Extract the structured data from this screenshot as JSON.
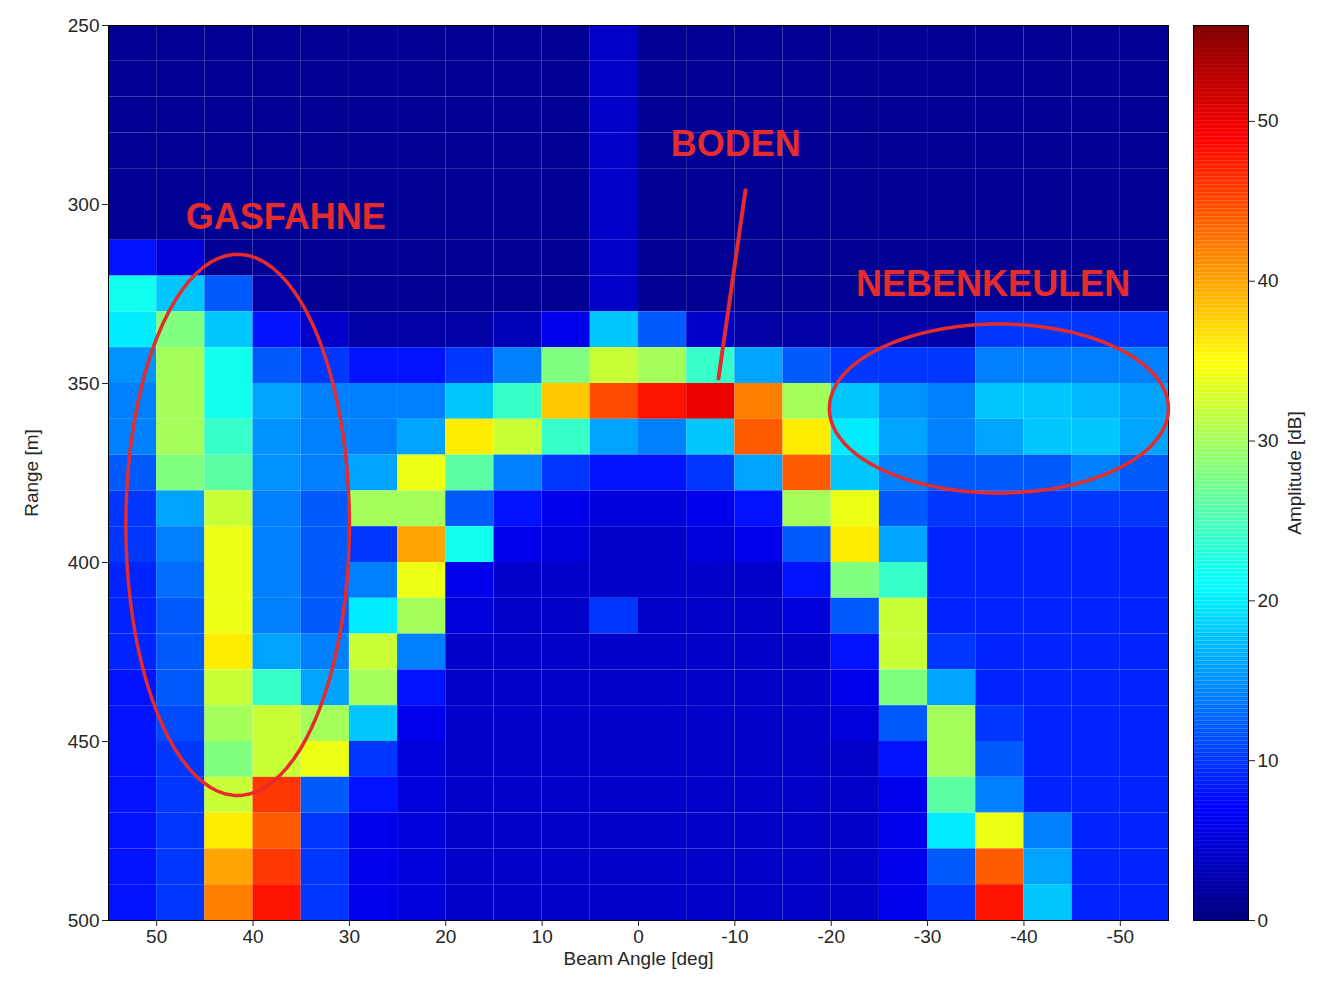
{
  "chart_data": {
    "type": "heatmap",
    "x_label": "Beam Angle [deg]",
    "y_label": "Range [m]",
    "xlim": [
      55,
      -55
    ],
    "ylim": [
      500,
      250
    ],
    "xticks": [
      50,
      40,
      30,
      20,
      10,
      0,
      -10,
      -20,
      -30,
      -40,
      -50
    ],
    "yticks": [
      250,
      300,
      350,
      400,
      450,
      500
    ],
    "x_bins": [
      55,
      50,
      45,
      40,
      35,
      30,
      25,
      20,
      15,
      10,
      5,
      0,
      -5,
      -10,
      -15,
      -20,
      -25,
      -30,
      -35,
      -40,
      -45,
      -50,
      -55
    ],
    "y_bins": [
      250,
      260,
      270,
      280,
      290,
      300,
      310,
      320,
      330,
      340,
      350,
      360,
      370,
      380,
      390,
      400,
      410,
      420,
      430,
      440,
      450,
      460,
      470,
      480,
      490,
      500
    ],
    "cells": [
      [
        1,
        1,
        1,
        1,
        1,
        1,
        1,
        1,
        1,
        1,
        4,
        1,
        1,
        1,
        1,
        1,
        1,
        1,
        1,
        1,
        1,
        1
      ],
      [
        1,
        1,
        1,
        1,
        1,
        1,
        1,
        1,
        1,
        1,
        4,
        1,
        1,
        1,
        1,
        1,
        1,
        1,
        1,
        1,
        1,
        1
      ],
      [
        1,
        1,
        1,
        1,
        1,
        1,
        1,
        1,
        1,
        1,
        4,
        1,
        1,
        1,
        1,
        1,
        1,
        1,
        1,
        1,
        1,
        1
      ],
      [
        1,
        1,
        1,
        1,
        1,
        1,
        1,
        1,
        1,
        1,
        4,
        1,
        1,
        1,
        1,
        1,
        1,
        1,
        1,
        1,
        1,
        1
      ],
      [
        1,
        1,
        1,
        1,
        1,
        1,
        1,
        1,
        1,
        1,
        4,
        1,
        1,
        1,
        1,
        1,
        1,
        1,
        1,
        1,
        1,
        1
      ],
      [
        1,
        1,
        1,
        1,
        1,
        1,
        1,
        1,
        1,
        1,
        4,
        1,
        1,
        1,
        1,
        1,
        1,
        1,
        1,
        1,
        1,
        1
      ],
      [
        8,
        5,
        1,
        1,
        1,
        1,
        1,
        1,
        1,
        1,
        4,
        1,
        1,
        1,
        1,
        1,
        1,
        1,
        1,
        1,
        1,
        1
      ],
      [
        22,
        18,
        12,
        2,
        1,
        1,
        1,
        1,
        1,
        1,
        4,
        1,
        1,
        1,
        1,
        1,
        1,
        1,
        1,
        1,
        1,
        1
      ],
      [
        20,
        28,
        18,
        8,
        4,
        2,
        2,
        2,
        3,
        6,
        18,
        12,
        4,
        2,
        2,
        2,
        2,
        2,
        10,
        10,
        10,
        10
      ],
      [
        15,
        30,
        22,
        12,
        10,
        8,
        8,
        10,
        14,
        28,
        32,
        30,
        24,
        16,
        12,
        10,
        10,
        10,
        14,
        14,
        14,
        14
      ],
      [
        14,
        30,
        22,
        16,
        14,
        14,
        14,
        18,
        24,
        38,
        45,
        48,
        50,
        42,
        30,
        18,
        15,
        14,
        18,
        18,
        17,
        16
      ],
      [
        14,
        30,
        24,
        15,
        14,
        14,
        16,
        36,
        32,
        24,
        16,
        14,
        18,
        44,
        36,
        20,
        16,
        14,
        16,
        18,
        18,
        16
      ],
      [
        12,
        28,
        26,
        15,
        14,
        16,
        34,
        26,
        14,
        10,
        8,
        8,
        10,
        16,
        44,
        18,
        14,
        12,
        12,
        12,
        14,
        12
      ],
      [
        10,
        16,
        32,
        14,
        12,
        30,
        30,
        12,
        8,
        6,
        5,
        5,
        6,
        8,
        30,
        34,
        12,
        10,
        10,
        10,
        10,
        10
      ],
      [
        10,
        14,
        34,
        14,
        12,
        10,
        40,
        22,
        6,
        5,
        4,
        4,
        5,
        6,
        12,
        36,
        16,
        9,
        9,
        9,
        9,
        9
      ],
      [
        9,
        13,
        34,
        14,
        12,
        14,
        34,
        6,
        4,
        4,
        4,
        4,
        4,
        4,
        8,
        28,
        24,
        9,
        9,
        9,
        9,
        9
      ],
      [
        9,
        12,
        34,
        14,
        12,
        20,
        30,
        5,
        4,
        4,
        10,
        4,
        4,
        4,
        5,
        12,
        32,
        9,
        9,
        9,
        9,
        9
      ],
      [
        9,
        12,
        36,
        16,
        14,
        32,
        14,
        4,
        4,
        4,
        4,
        4,
        4,
        4,
        4,
        8,
        32,
        10,
        9,
        9,
        9,
        9
      ],
      [
        8,
        12,
        32,
        24,
        16,
        30,
        8,
        4,
        4,
        4,
        4,
        4,
        4,
        4,
        4,
        6,
        28,
        16,
        9,
        9,
        9,
        9
      ],
      [
        8,
        11,
        30,
        32,
        30,
        18,
        6,
        4,
        4,
        4,
        4,
        4,
        4,
        4,
        4,
        5,
        12,
        30,
        10,
        9,
        9,
        9
      ],
      [
        8,
        10,
        28,
        32,
        34,
        10,
        5,
        4,
        4,
        4,
        4,
        4,
        4,
        4,
        4,
        4,
        8,
        30,
        12,
        9,
        9,
        9
      ],
      [
        8,
        10,
        32,
        46,
        12,
        8,
        5,
        4,
        4,
        4,
        4,
        4,
        4,
        4,
        4,
        4,
        6,
        26,
        14,
        9,
        9,
        9
      ],
      [
        8,
        10,
        36,
        44,
        10,
        6,
        5,
        4,
        4,
        4,
        4,
        4,
        4,
        4,
        4,
        4,
        6,
        20,
        34,
        14,
        9,
        9
      ],
      [
        8,
        10,
        40,
        46,
        10,
        6,
        5,
        4,
        4,
        4,
        4,
        4,
        4,
        4,
        4,
        4,
        6,
        12,
        44,
        16,
        9,
        9
      ],
      [
        8,
        10,
        42,
        48,
        10,
        6,
        5,
        4,
        4,
        4,
        4,
        4,
        4,
        4,
        4,
        4,
        6,
        10,
        48,
        18,
        9,
        9
      ]
    ],
    "colorbar": {
      "label": "Amplitude [dB]",
      "lim": [
        0,
        56
      ],
      "ticks": [
        0,
        10,
        20,
        30,
        40,
        50
      ]
    },
    "annotations": [
      "GASFAHNE",
      "BODEN",
      "NEBENKEULEN"
    ]
  }
}
